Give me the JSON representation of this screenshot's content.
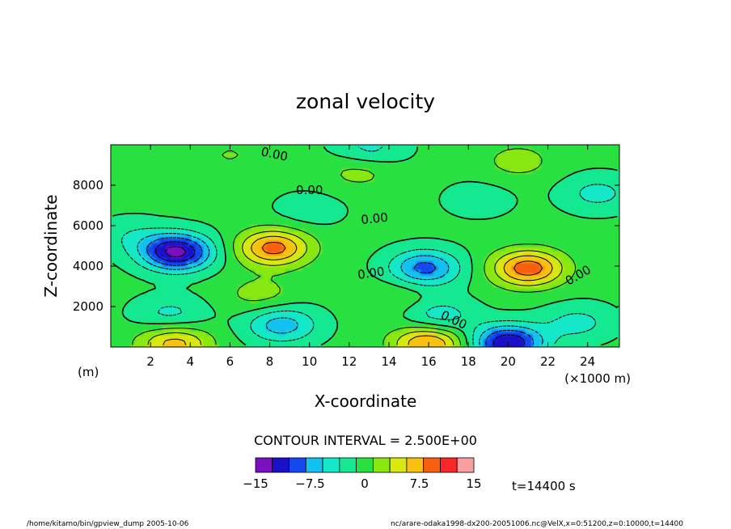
{
  "chart_data": {
    "type": "heatmap",
    "title": "zonal velocity",
    "xlabel": "X-coordinate",
    "ylabel": "Z-coordinate",
    "x_unit": "(×1000 m)",
    "y_unit": "(m)",
    "xlim": [
      0,
      25.6
    ],
    "ylim": [
      0,
      10000
    ],
    "x_ticks": [
      2,
      4,
      6,
      8,
      10,
      12,
      14,
      16,
      18,
      20,
      22,
      24
    ],
    "y_ticks": [
      2000,
      4000,
      6000,
      8000
    ],
    "x_tick_labels": [
      "2",
      "4",
      "6",
      "8",
      "10",
      "12",
      "14",
      "16",
      "18",
      "20",
      "22",
      "24"
    ],
    "y_tick_labels": [
      "2000",
      "4000",
      "6000",
      "8000"
    ],
    "contour_interval_text": "CONTOUR INTERVAL = 2.500E+00",
    "contour_labels": [
      "0.00",
      "0.00",
      "0.00",
      "0.00",
      "0.00",
      "0.00"
    ],
    "colorbar": {
      "levels": [
        -15,
        -12.5,
        -10,
        -7.5,
        -5,
        -2.5,
        0,
        2.5,
        5,
        7.5,
        10,
        12.5,
        15
      ],
      "colors": [
        "#7a10c0",
        "#1a10c8",
        "#1448f0",
        "#14c0f0",
        "#14e8c8",
        "#14e890",
        "#28e040",
        "#88e810",
        "#d8e810",
        "#f8c010",
        "#f86010",
        "#f82828",
        "#f8a0a0"
      ],
      "tick_labels": [
        "−15",
        "−7.5",
        "0",
        "7.5",
        "15"
      ]
    },
    "time_label": "t=14400 s",
    "footer_left": "/home/kitamo/bin/gpview_dump  2005-10-06",
    "footer_right": "nc/arare-odaka1998-dx200-20051006.nc@VelX,x=0:51200,z=0:10000,t=14400",
    "extrema": [
      {
        "x": 3.3,
        "z": 4700,
        "u": -14
      },
      {
        "x": 8.2,
        "z": 4900,
        "u": 10.5
      },
      {
        "x": 15.8,
        "z": 3900,
        "u": -9
      },
      {
        "x": 21.0,
        "z": 3900,
        "u": 11
      },
      {
        "x": 20.0,
        "z": 200,
        "u": -13
      },
      {
        "x": 16.0,
        "z": 200,
        "u": 10
      },
      {
        "x": 3.2,
        "z": 200,
        "u": 8
      },
      {
        "x": 8.6,
        "z": 1100,
        "u": -7
      },
      {
        "x": 3.0,
        "z": 1600,
        "u": -4
      },
      {
        "x": 16.5,
        "z": 1500,
        "u": -5
      },
      {
        "x": 23.5,
        "z": 1200,
        "u": -4
      },
      {
        "x": 24.5,
        "z": 7600,
        "u": -4
      },
      {
        "x": 7.5,
        "z": 2600,
        "u": 3
      },
      {
        "x": 12.5,
        "z": 8700,
        "u": 3
      },
      {
        "x": 20.5,
        "z": 9200,
        "u": 3
      },
      {
        "x": 13.0,
        "z": 9800,
        "u": -4
      },
      {
        "x": 6.0,
        "z": 9500,
        "u": 2
      },
      {
        "x": 18.5,
        "z": 7300,
        "u": -2
      },
      {
        "x": 10.0,
        "z": 6800,
        "u": -2
      },
      {
        "x": 1.0,
        "z": 5500,
        "u": -2.5
      },
      {
        "x": 14.5,
        "z": 2500,
        "u": 2
      }
    ]
  }
}
